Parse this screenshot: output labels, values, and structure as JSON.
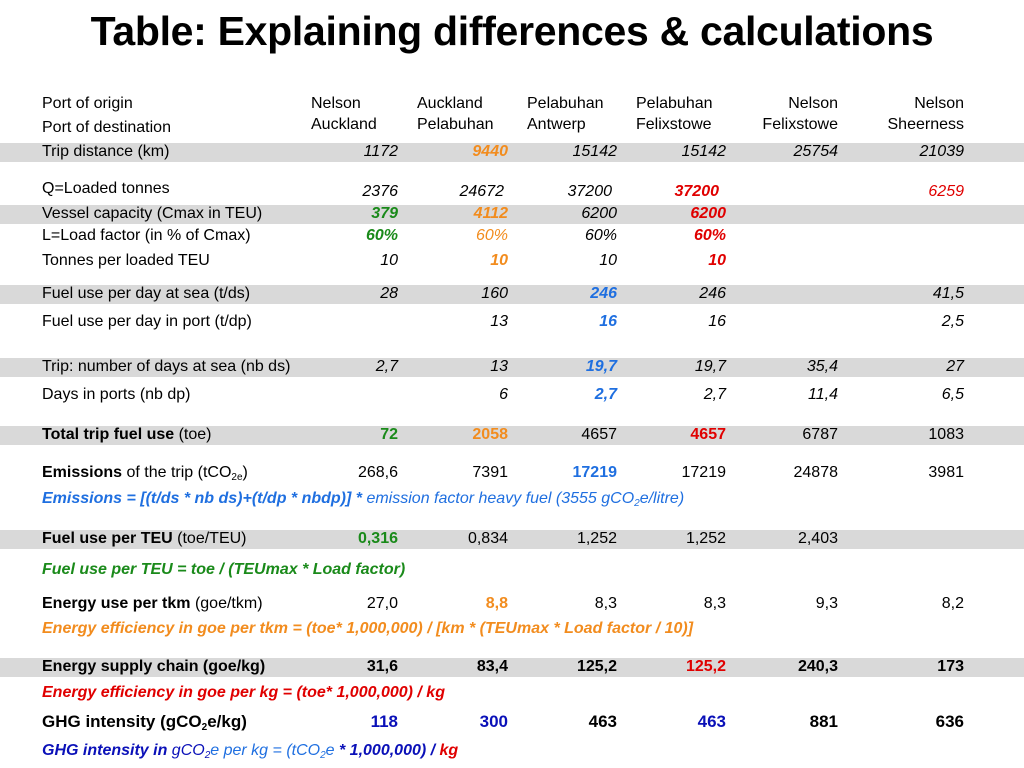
{
  "title": "Table: Explaining differences & calculations",
  "header": {
    "origin_label": "Port of origin",
    "destination_label": "Port of destination",
    "routes": [
      {
        "origin": "Nelson",
        "destination": "Auckland"
      },
      {
        "origin": "Auckland",
        "destination": "Pelabuhan"
      },
      {
        "origin": "Pelabuhan",
        "destination": "Antwerp"
      },
      {
        "origin": "Pelabuhan",
        "destination": "Felixstowe"
      },
      {
        "origin": "Nelson",
        "destination": "Felixstowe"
      },
      {
        "origin": "Nelson",
        "destination": "Sheerness"
      }
    ]
  },
  "rows": {
    "trip_distance": {
      "label": "Trip distance (km)",
      "values": [
        "1172",
        "9440",
        "15142",
        "15142",
        "25754",
        "21039"
      ]
    },
    "loaded_tonnes": {
      "label": "Q=Loaded tonnes",
      "values": [
        "2376",
        "24672",
        "37200",
        "37200",
        "",
        "6259"
      ]
    },
    "vessel_capacity": {
      "label": "Vessel capacity (Cmax in TEU)",
      "values": [
        "379",
        "4112",
        "6200",
        "6200",
        "",
        ""
      ]
    },
    "load_factor": {
      "label": "L=Load factor (in % of Cmax)",
      "values": [
        "60%",
        "60%",
        "60%",
        "60%",
        "",
        ""
      ]
    },
    "tonnes_per_teu": {
      "label": "Tonnes per loaded TEU",
      "values": [
        "10",
        "10",
        "10",
        "10",
        "",
        ""
      ]
    },
    "fuel_sea": {
      "label": "Fuel use per day at sea (t/ds)",
      "values": [
        "28",
        "160",
        "246",
        "246",
        "",
        "41,5"
      ]
    },
    "fuel_port": {
      "label": "Fuel use per day in port (t/dp)",
      "values": [
        "",
        "13",
        "16",
        "16",
        "",
        "2,5"
      ]
    },
    "days_sea": {
      "label": "Trip: number of days at sea (nb ds)",
      "values": [
        "2,7",
        "13",
        "19,7",
        "19,7",
        "35,4",
        "27"
      ]
    },
    "days_port": {
      "label": "Days in ports (nb dp)",
      "values": [
        "",
        "6",
        "2,7",
        "2,7",
        "11,4",
        "6,5"
      ]
    },
    "total_fuel": {
      "label_bold": "Total trip fuel use",
      "label_rest": " (toe)",
      "values": [
        "72",
        "2058",
        "4657",
        "4657",
        "6787",
        "1083"
      ]
    },
    "emissions": {
      "label_bold": "Emissions",
      "label_rest_a": " of the trip (tCO",
      "label_sub": "2e",
      "label_rest_b": ")",
      "values": [
        "268,6",
        "7391",
        "17219",
        "17219",
        "24878",
        "3981"
      ]
    },
    "fuel_per_teu": {
      "label_bold": "Fuel use per TEU",
      "label_rest": " (toe/TEU)",
      "values": [
        "0,316",
        "0,834",
        "1,252",
        "1,252",
        "2,403",
        ""
      ]
    },
    "energy_tkm": {
      "label_bold": "Energy use per tkm",
      "label_rest": " (goe/tkm)",
      "values": [
        "27,0",
        "8,8",
        "8,3",
        "8,3",
        "9,3",
        "8,2"
      ]
    },
    "energy_supply": {
      "label": "Energy supply chain (goe/kg)",
      "values": [
        "31,6",
        "83,4",
        "125,2",
        "125,2",
        "240,3",
        "173"
      ]
    },
    "ghg_intensity": {
      "label_a": "GHG intensity (gCO",
      "label_sub": "2",
      "label_b": "e/kg)",
      "values": [
        "118",
        "300",
        "463",
        "463",
        "881",
        "636"
      ]
    }
  },
  "formulas": {
    "emissions": {
      "bold": "Emissions = [(t/ds * nb ds)+(t/dp * nbdp)] * ",
      "rest_a": "emission factor heavy fuel (3555 gCO",
      "sub": "2",
      "rest_b": "e/litre)"
    },
    "fuel_per_teu": "Fuel use per TEU = toe / (TEUmax * Load factor)",
    "energy_efficiency_tkm": "Energy efficiency in goe per tkm = (toe* 1,000,000) / [km * (TEUmax * Load factor / 10)]",
    "energy_efficiency_kg": "Energy efficiency in goe per kg = (toe* 1,000,000) / kg",
    "ghg": {
      "part1": "GHG intensity in ",
      "part2": "gCO",
      "sub1": "2",
      "part3": "e per kg = (tCO",
      "sub2": "2",
      "part4": "e",
      "part5": " * 1,000,000) / ",
      "part6": "kg"
    }
  },
  "colors": {
    "green": "#1a8a1a",
    "orange": "#f28c1e",
    "red": "#e00000",
    "blue": "#1f6fe0",
    "navy": "#0a10b8",
    "band": "#d9d9d9"
  }
}
